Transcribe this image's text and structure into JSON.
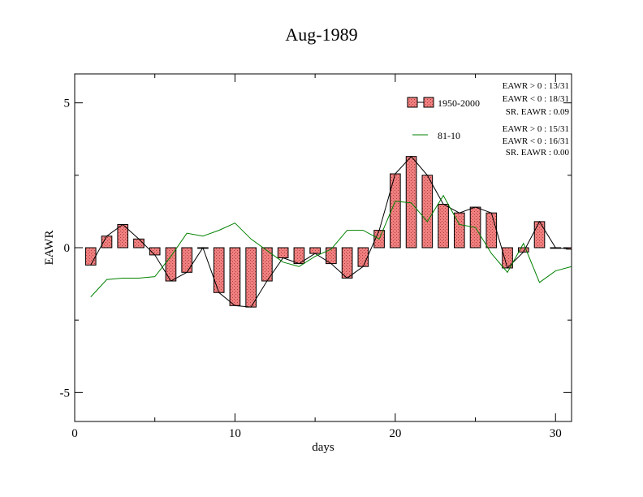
{
  "chart_data": {
    "type": "bar",
    "title": "Aug-1989",
    "xlabel": "days",
    "ylabel": "EAWR",
    "xlim": [
      0,
      31
    ],
    "ylim": [
      -6,
      6
    ],
    "x_ticks": [
      0,
      10,
      20,
      30
    ],
    "x_tick_labels": [
      "0",
      "10",
      "20",
      "30"
    ],
    "y_ticks": [
      -5,
      0,
      5
    ],
    "y_tick_labels": [
      "-5",
      "0",
      "5"
    ],
    "grid": false,
    "legend_position": "top-right",
    "days": [
      1,
      2,
      3,
      4,
      5,
      6,
      7,
      8,
      9,
      10,
      11,
      12,
      13,
      14,
      15,
      16,
      17,
      18,
      19,
      20,
      21,
      22,
      23,
      24,
      25,
      26,
      27,
      28,
      29,
      30,
      31
    ],
    "series": [
      {
        "name": "1950-2000",
        "style": "bar",
        "bar_color": "#f08080",
        "line_color": "#000000",
        "values": [
          -0.6,
          0.4,
          0.8,
          0.3,
          -0.25,
          -1.15,
          -0.85,
          0.0,
          -1.55,
          -2.0,
          -2.05,
          -1.15,
          -0.35,
          -0.55,
          -0.2,
          -0.55,
          -1.05,
          -0.65,
          0.6,
          2.55,
          3.15,
          2.5,
          1.5,
          1.2,
          1.4,
          1.2,
          -0.7,
          -0.15,
          0.9,
          0.0,
          -0.05
        ]
      },
      {
        "name": "81-10",
        "style": "line",
        "line_color": "#008000",
        "values": [
          -1.7,
          -1.1,
          -1.05,
          -1.05,
          -1.0,
          -0.3,
          0.5,
          0.4,
          0.6,
          0.85,
          0.3,
          -0.1,
          -0.5,
          -0.65,
          -0.3,
          -0.05,
          0.6,
          0.6,
          0.3,
          1.6,
          1.55,
          0.9,
          1.8,
          0.8,
          0.7,
          -0.2,
          -0.85,
          0.15,
          -1.2,
          -0.8,
          -0.65
        ]
      }
    ],
    "stats": [
      [
        "EAWR > 0 : 13/31",
        "EAWR < 0 : 18/31",
        "SR. EAWR :  0.09"
      ],
      [
        "EAWR > 0 : 15/31",
        "EAWR < 0 : 16/31",
        "SR. EAWR :  0.00"
      ]
    ]
  }
}
